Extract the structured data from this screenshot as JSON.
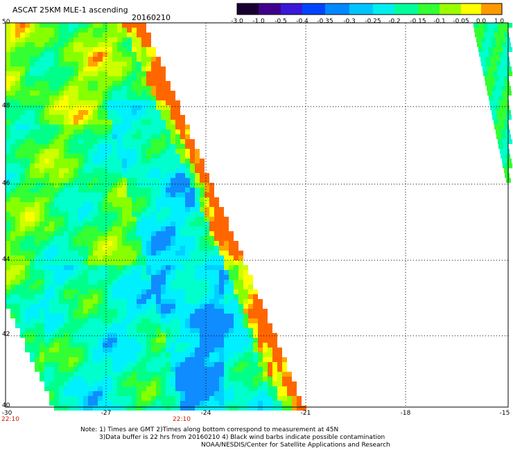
{
  "header": {
    "title": "ASCAT 25KM MLE-1 ascending",
    "date": "20160210"
  },
  "colorbar": {
    "labels": [
      "-3.0",
      "-1.0",
      "-0.5",
      "-0.4",
      "-0.35",
      "-0.3",
      "-0.25",
      "-0.2",
      "-0.15",
      "-0.1",
      "-0.05",
      "0.0",
      "1.0"
    ],
    "colors": [
      "#1a0030",
      "#40008c",
      "#3a18d8",
      "#0044ff",
      "#0088ff",
      "#00c4ff",
      "#00eeee",
      "#00ff99",
      "#33ff33",
      "#99ff00",
      "#ffff00",
      "#ff9900",
      "#ff2200"
    ]
  },
  "map": {
    "lat_labels": [
      "50",
      "48",
      "46",
      "44",
      "42",
      "40"
    ],
    "lon_labels": [
      "-30",
      "-27",
      "-24",
      "-21",
      "-18",
      "-15"
    ],
    "time_labels": [
      "22:10",
      "22:10"
    ]
  },
  "notes": {
    "line1": "Note: 1) Times are GMT 2)Times along bottom correspond to measurement at 45N",
    "line2": "3)Data buffer is 22 hrs from 20160210 4) Black wind barbs indicate possible contamination",
    "line3": "NOAA/NESDIS/Center for Satellite Applications and Research"
  }
}
